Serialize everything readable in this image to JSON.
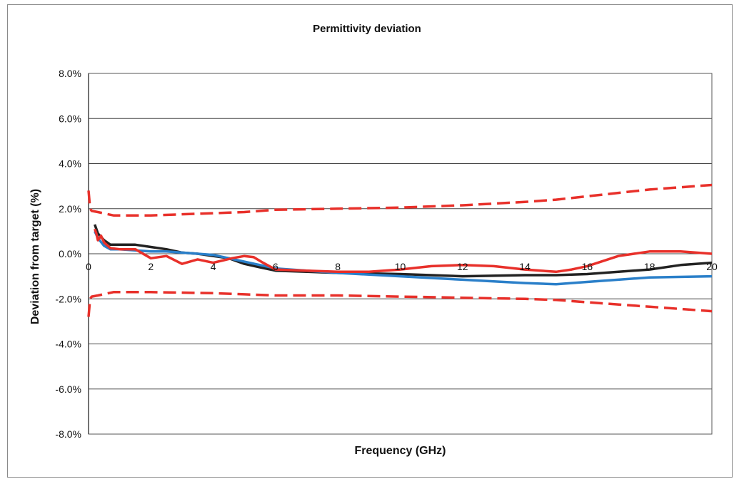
{
  "chart_data": {
    "type": "line",
    "title": "Permittivity deviation",
    "xlabel": "Frequency (GHz)",
    "ylabel": "Deviation from target (%)",
    "xlim": [
      0,
      20
    ],
    "ylim": [
      -8.0,
      8.0
    ],
    "x_ticks": [
      0,
      2,
      4,
      6,
      8,
      10,
      12,
      14,
      16,
      18,
      20
    ],
    "x_tick_labels": [
      "0",
      "2",
      "4",
      "6",
      "8",
      "10",
      "12",
      "14",
      "16",
      "18",
      "20"
    ],
    "y_ticks": [
      8,
      6,
      4,
      2,
      0,
      -2,
      -4,
      -6,
      -8
    ],
    "y_tick_labels": [
      "8.0%",
      "6.0%",
      "4.0%",
      "2.0%",
      "0.0%",
      "-2.0%",
      "-4.0%",
      "-6.0%",
      "-8.0%"
    ],
    "grid": "horizontal",
    "series": [
      {
        "color": "#e8302a",
        "dash": "dashed",
        "x": [
          0,
          0.05,
          0.1,
          0.3,
          0.8,
          2,
          4,
          5,
          6,
          8,
          10,
          12,
          14,
          15,
          16,
          18,
          20
        ],
        "y": [
          2.8,
          2.0,
          1.9,
          1.85,
          1.7,
          1.7,
          1.8,
          1.85,
          1.95,
          2.0,
          2.05,
          2.15,
          2.3,
          2.4,
          2.55,
          2.85,
          3.05
        ]
      },
      {
        "color": "#e8302a",
        "dash": "dashed",
        "x": [
          0,
          0.05,
          0.1,
          0.3,
          0.8,
          2,
          4,
          5,
          6,
          8,
          10,
          12,
          14,
          15,
          16,
          18,
          20
        ],
        "y": [
          -2.8,
          -2.0,
          -1.9,
          -1.85,
          -1.7,
          -1.7,
          -1.75,
          -1.8,
          -1.85,
          -1.85,
          -1.9,
          -1.95,
          -2.0,
          -2.05,
          -2.15,
          -2.35,
          -2.55
        ]
      },
      {
        "color": "#222222",
        "dash": "solid",
        "x": [
          0.2,
          0.3,
          0.5,
          0.7,
          1.0,
          1.5,
          2.0,
          2.5,
          3.0,
          3.5,
          4.0,
          4.5,
          5.0,
          5.5,
          6.0,
          7.0,
          8.0,
          10.0,
          12.0,
          14.0,
          15.0,
          16.0,
          18.0,
          19.0,
          20.0
        ],
        "y": [
          1.3,
          0.9,
          0.6,
          0.4,
          0.4,
          0.4,
          0.3,
          0.2,
          0.05,
          0.0,
          -0.1,
          -0.2,
          -0.45,
          -0.6,
          -0.75,
          -0.8,
          -0.85,
          -0.9,
          -1.0,
          -0.95,
          -0.95,
          -0.9,
          -0.7,
          -0.5,
          -0.4
        ]
      },
      {
        "color": "#2a7fc9",
        "dash": "solid",
        "x": [
          0.2,
          0.3,
          0.5,
          0.7,
          1.0,
          1.5,
          2.0,
          2.5,
          3.0,
          3.5,
          4.0,
          4.5,
          5.0,
          5.5,
          6.0,
          7.0,
          8.0,
          10.0,
          12.0,
          14.0,
          15.0,
          16.0,
          18.0,
          20.0
        ],
        "y": [
          1.0,
          0.7,
          0.35,
          0.2,
          0.2,
          0.15,
          0.1,
          0.1,
          0.05,
          0.0,
          -0.05,
          -0.2,
          -0.35,
          -0.5,
          -0.65,
          -0.75,
          -0.85,
          -1.0,
          -1.15,
          -1.3,
          -1.35,
          -1.25,
          -1.05,
          -1.0
        ]
      },
      {
        "color": "#e8302a",
        "dash": "solid",
        "x": [
          0.2,
          0.25,
          0.3,
          0.4,
          0.5,
          0.7,
          1.0,
          1.5,
          2.0,
          2.5,
          3.0,
          3.5,
          4.0,
          4.3,
          4.6,
          5.0,
          5.3,
          5.6,
          6.0,
          7.0,
          8.0,
          9.0,
          10.0,
          11.0,
          12.0,
          13.0,
          14.0,
          15.0,
          15.5,
          16.0,
          17.0,
          18.0,
          19.0,
          20.0
        ],
        "y": [
          1.1,
          0.9,
          0.6,
          0.8,
          0.5,
          0.25,
          0.2,
          0.2,
          -0.2,
          -0.1,
          -0.45,
          -0.25,
          -0.4,
          -0.3,
          -0.2,
          -0.1,
          -0.15,
          -0.4,
          -0.7,
          -0.75,
          -0.8,
          -0.8,
          -0.7,
          -0.55,
          -0.5,
          -0.55,
          -0.7,
          -0.8,
          -0.7,
          -0.55,
          -0.1,
          0.1,
          0.1,
          0.0
        ]
      }
    ]
  }
}
